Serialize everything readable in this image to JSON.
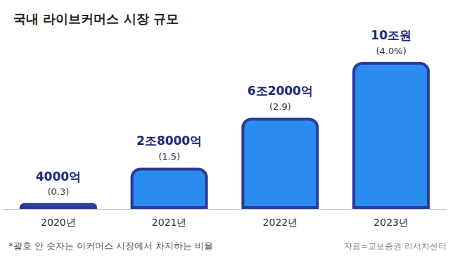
{
  "chart_data": {
    "type": "bar",
    "title": "국내 라이브커머스 시장 규모",
    "categories": [
      "2020년",
      "2021년",
      "2022년",
      "2023년"
    ],
    "values": [
      4000,
      28000,
      62000,
      100000
    ],
    "value_labels": [
      "4000억",
      "2조8000억",
      "6조2000억",
      "10조원"
    ],
    "share_labels": [
      "(0.3)",
      "(1.5)",
      "(2.9)",
      "(4.0%)"
    ],
    "color": "#2b8cf0",
    "data_labels": true,
    "tick_labels": "x",
    "grid": false,
    "note": "*괄호 안 숫자는 이커머스 시장에서 차지하는 비율",
    "source": "자료=교보증권 리서치센터"
  }
}
